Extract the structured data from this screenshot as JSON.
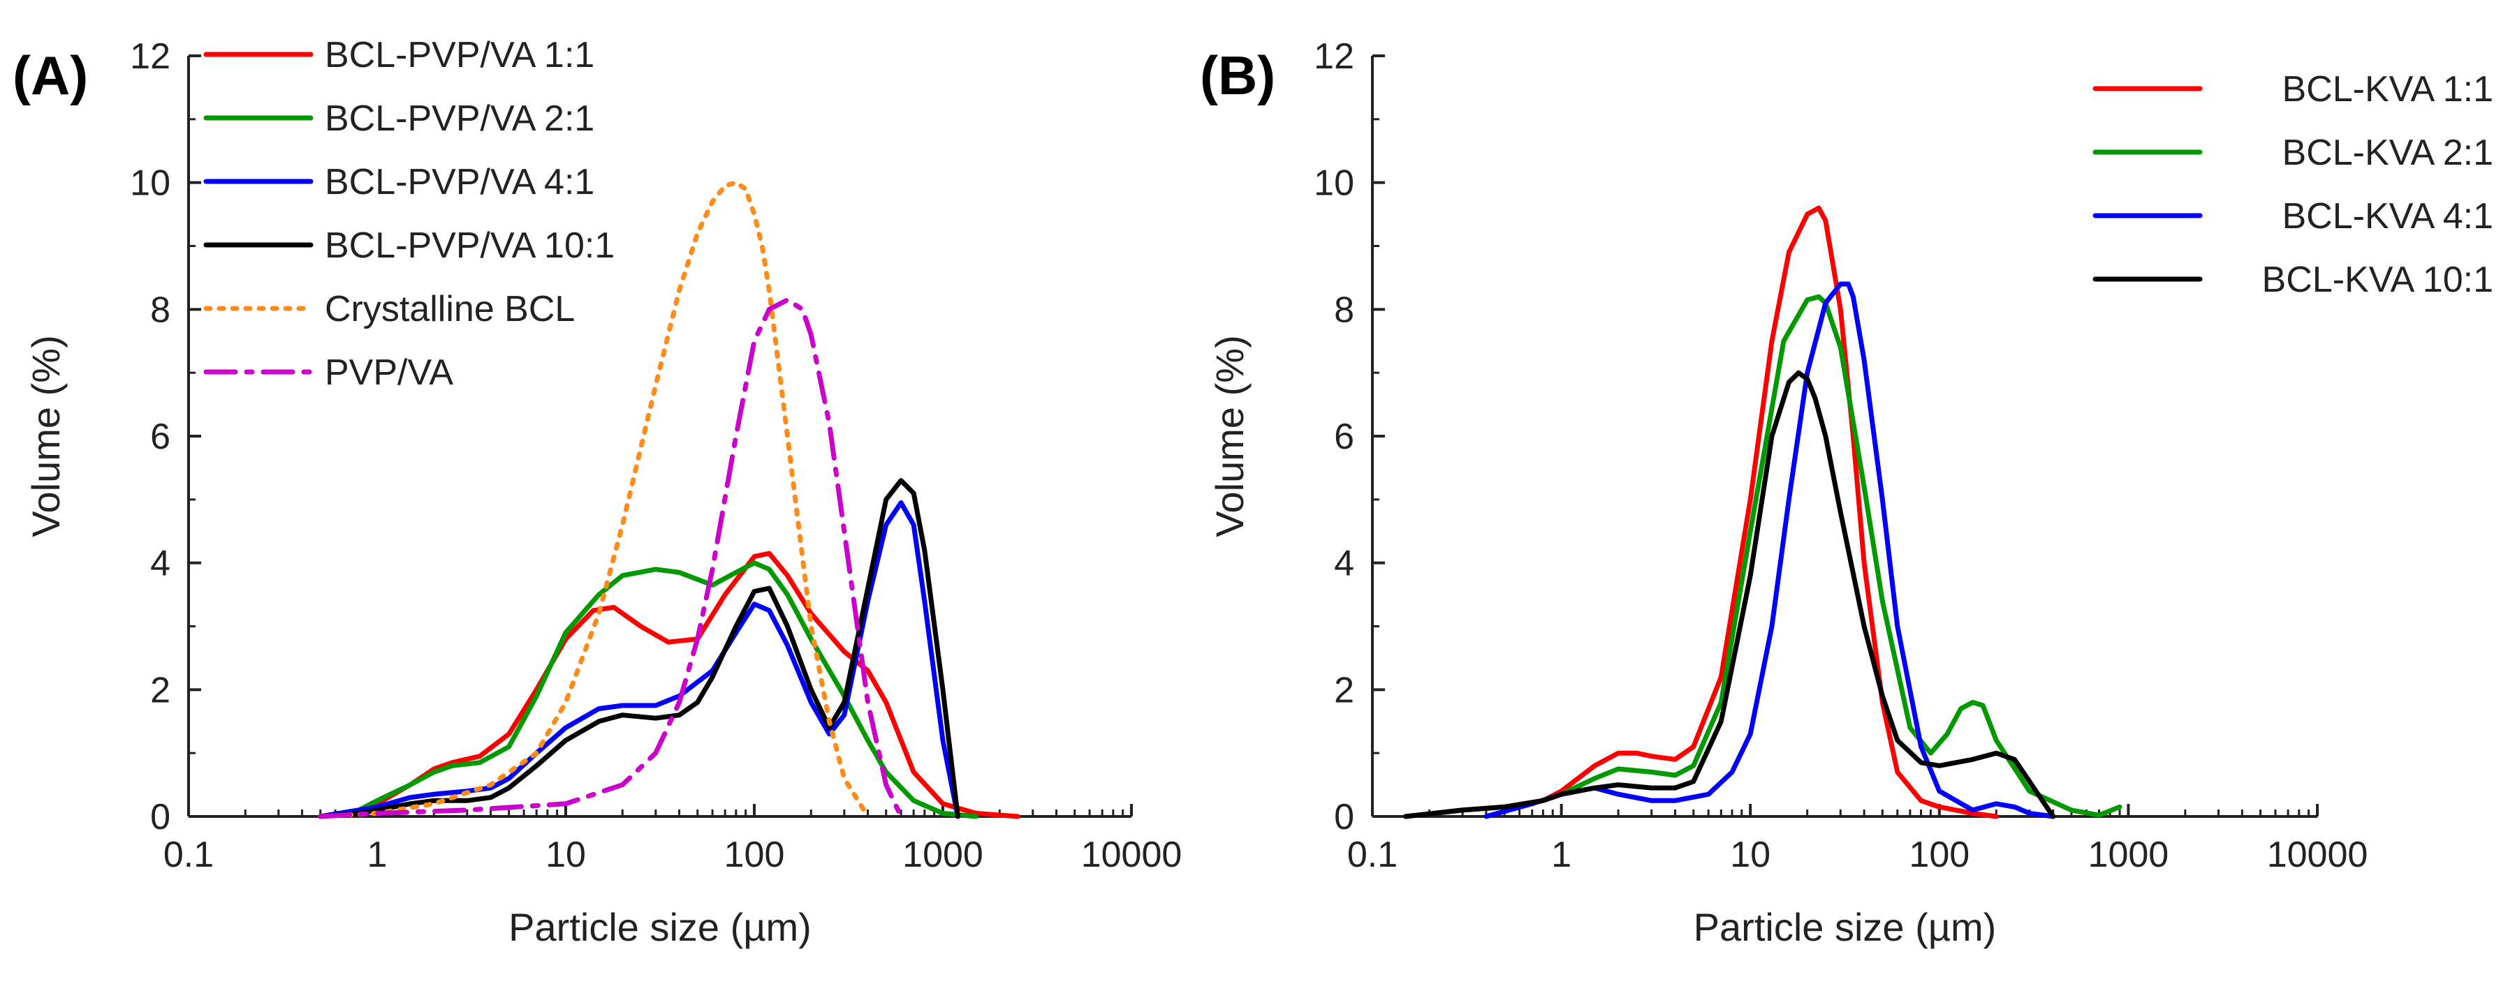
{
  "chart_data": [
    {
      "panel": "(A)",
      "type": "line",
      "xlabel": "Particle size (µm)",
      "ylabel": "Volume (%)",
      "xscale": "log",
      "xlim": [
        0.1,
        10000
      ],
      "ylim": [
        0,
        12
      ],
      "xticks": [
        0.1,
        1,
        10,
        100,
        1000,
        10000
      ],
      "xtick_labels": [
        "0.1",
        "1",
        "10",
        "100",
        "1000",
        "10000"
      ],
      "yticks": [
        0,
        2,
        4,
        6,
        8,
        10,
        12
      ],
      "ytick_labels": [
        "0",
        "2",
        "4",
        "6",
        "8",
        "10",
        "12"
      ],
      "grid": false,
      "legend_position": "top-left",
      "series": [
        {
          "name": "BCL-PVP/VA 1:1",
          "color": "#ff0000",
          "dash": "solid",
          "x": [
            0.5,
            0.8,
            1,
            1.5,
            2,
            2.5,
            3.5,
            5,
            7,
            10,
            14,
            18,
            25,
            35,
            50,
            70,
            100,
            120,
            150,
            200,
            300,
            400,
            500,
            700,
            1000,
            1500,
            2500
          ],
          "y": [
            0,
            0.05,
            0.2,
            0.5,
            0.75,
            0.85,
            0.95,
            1.3,
            2.0,
            2.8,
            3.25,
            3.3,
            3.0,
            2.75,
            2.8,
            3.5,
            4.1,
            4.15,
            3.8,
            3.2,
            2.6,
            2.3,
            1.8,
            0.7,
            0.2,
            0.05,
            0
          ]
        },
        {
          "name": "BCL-PVP/VA 2:1",
          "color": "#009900",
          "dash": "solid",
          "x": [
            0.5,
            0.8,
            1,
            1.5,
            2,
            2.5,
            3.5,
            5,
            7,
            10,
            15,
            20,
            30,
            40,
            60,
            80,
            100,
            120,
            150,
            200,
            300,
            400,
            500,
            700,
            1000,
            1500
          ],
          "y": [
            0,
            0.1,
            0.25,
            0.5,
            0.7,
            0.8,
            0.85,
            1.1,
            1.9,
            2.9,
            3.5,
            3.8,
            3.9,
            3.85,
            3.65,
            3.85,
            4.0,
            3.9,
            3.5,
            2.8,
            1.9,
            1.2,
            0.7,
            0.25,
            0.05,
            0
          ]
        },
        {
          "name": "BCL-PVP/VA 4:1",
          "color": "#0000ff",
          "dash": "solid",
          "x": [
            0.5,
            0.8,
            1,
            1.5,
            2,
            3,
            4,
            5,
            7,
            10,
            15,
            20,
            30,
            40,
            60,
            80,
            100,
            120,
            150,
            200,
            250,
            300,
            400,
            500,
            600,
            700,
            800,
            1000,
            1200
          ],
          "y": [
            0,
            0.1,
            0.15,
            0.3,
            0.35,
            0.4,
            0.45,
            0.6,
            1.0,
            1.4,
            1.7,
            1.75,
            1.75,
            1.9,
            2.3,
            2.9,
            3.35,
            3.25,
            2.7,
            1.8,
            1.3,
            1.6,
            3.4,
            4.6,
            4.95,
            4.6,
            3.4,
            1.2,
            0
          ]
        },
        {
          "name": "BCL-PVP/VA 10:1",
          "color": "#000000",
          "dash": "solid",
          "x": [
            0.5,
            0.8,
            1,
            1.5,
            2,
            3,
            4,
            5,
            7,
            10,
            15,
            20,
            30,
            40,
            50,
            60,
            80,
            100,
            120,
            150,
            200,
            250,
            300,
            400,
            500,
            600,
            700,
            800,
            1000,
            1200
          ],
          "y": [
            0,
            0.05,
            0.1,
            0.2,
            0.25,
            0.25,
            0.3,
            0.45,
            0.8,
            1.2,
            1.5,
            1.6,
            1.55,
            1.6,
            1.8,
            2.2,
            3.0,
            3.55,
            3.6,
            3.0,
            2.0,
            1.4,
            1.8,
            3.6,
            5.0,
            5.3,
            5.1,
            4.2,
            2.0,
            0
          ]
        },
        {
          "name": "Crystalline BCL",
          "color": "#ff8c1a",
          "dash": "dot",
          "x": [
            0.5,
            1,
            2,
            4,
            7,
            10,
            15,
            20,
            30,
            40,
            50,
            60,
            70,
            80,
            90,
            100,
            110,
            120,
            150,
            200,
            250,
            300,
            400
          ],
          "y": [
            0,
            0.05,
            0.2,
            0.5,
            1.0,
            1.8,
            3.2,
            4.6,
            6.8,
            8.3,
            9.2,
            9.7,
            9.95,
            10.0,
            9.9,
            9.5,
            9.0,
            8.3,
            6.0,
            3.0,
            1.5,
            0.6,
            0
          ]
        },
        {
          "name": "PVP/VA",
          "color": "#cc00cc",
          "dash": "dashdot",
          "x": [
            0.5,
            1,
            3,
            10,
            20,
            30,
            40,
            50,
            60,
            80,
            100,
            120,
            150,
            180,
            200,
            250,
            300,
            400,
            500,
            600
          ],
          "y": [
            0,
            0.05,
            0.1,
            0.2,
            0.5,
            1.0,
            1.8,
            2.8,
            3.9,
            6.0,
            7.5,
            8.0,
            8.15,
            8.0,
            7.6,
            6.2,
            4.5,
            1.8,
            0.5,
            0
          ]
        }
      ]
    },
    {
      "panel": "(B)",
      "type": "line",
      "xlabel": "Particle size (µm)",
      "ylabel": "Volume (%)",
      "xscale": "log",
      "xlim": [
        0.1,
        10000
      ],
      "ylim": [
        0,
        12
      ],
      "xticks": [
        0.1,
        1,
        10,
        100,
        1000,
        10000
      ],
      "xtick_labels": [
        "0.1",
        "1",
        "10",
        "100",
        "1000",
        "10000"
      ],
      "yticks": [
        0,
        2,
        4,
        6,
        8,
        10,
        12
      ],
      "ytick_labels": [
        "0",
        "2",
        "4",
        "6",
        "8",
        "10",
        "12"
      ],
      "grid": false,
      "legend_position": "top-right",
      "series": [
        {
          "name": "BCL-KVA 1:1",
          "color": "#ff0000",
          "dash": "solid",
          "x": [
            0.15,
            0.3,
            0.5,
            0.8,
            1,
            1.5,
            2,
            2.5,
            3,
            4,
            5,
            7,
            10,
            13,
            16,
            20,
            23,
            25,
            30,
            35,
            40,
            50,
            60,
            80,
            100,
            150,
            200
          ],
          "y": [
            0,
            0.1,
            0.15,
            0.25,
            0.4,
            0.8,
            1.0,
            1.0,
            0.95,
            0.9,
            1.1,
            2.2,
            5.0,
            7.5,
            8.9,
            9.5,
            9.6,
            9.4,
            8.0,
            6.0,
            4.0,
            1.8,
            0.7,
            0.25,
            0.15,
            0.05,
            0
          ]
        },
        {
          "name": "BCL-KVA 2:1",
          "color": "#009900",
          "dash": "solid",
          "x": [
            0.15,
            0.3,
            0.5,
            0.8,
            1,
            1.5,
            2,
            3,
            4,
            5,
            7,
            10,
            15,
            20,
            23,
            25,
            30,
            40,
            50,
            70,
            90,
            110,
            130,
            150,
            170,
            200,
            300,
            500,
            700,
            900
          ],
          "y": [
            0,
            0.1,
            0.15,
            0.25,
            0.35,
            0.6,
            0.75,
            0.7,
            0.65,
            0.8,
            1.8,
            4.5,
            7.5,
            8.15,
            8.2,
            8.1,
            7.4,
            5.2,
            3.4,
            1.4,
            1.0,
            1.3,
            1.7,
            1.8,
            1.75,
            1.2,
            0.4,
            0.1,
            0.02,
            0.15
          ]
        },
        {
          "name": "BCL-KVA 4:1",
          "color": "#0000ff",
          "dash": "solid",
          "x": [
            0.4,
            0.7,
            1,
            1.5,
            2,
            3,
            4,
            6,
            8,
            10,
            13,
            16,
            20,
            25,
            30,
            33,
            35,
            40,
            50,
            60,
            80,
            100,
            150,
            200,
            250,
            300,
            400
          ],
          "y": [
            0,
            0.2,
            0.35,
            0.45,
            0.35,
            0.25,
            0.25,
            0.35,
            0.7,
            1.3,
            3.0,
            5.0,
            7.0,
            8.1,
            8.4,
            8.4,
            8.2,
            7.2,
            5.0,
            3.0,
            1.1,
            0.4,
            0.1,
            0.2,
            0.15,
            0.05,
            0
          ]
        },
        {
          "name": "BCL-KVA 10:1",
          "color": "#000000",
          "dash": "solid",
          "x": [
            0.15,
            0.3,
            0.5,
            0.8,
            1,
            1.5,
            2,
            3,
            4,
            5,
            7,
            10,
            13,
            16,
            18,
            20,
            22,
            25,
            30,
            40,
            50,
            60,
            80,
            100,
            150,
            200,
            250,
            300,
            400
          ],
          "y": [
            0,
            0.1,
            0.15,
            0.25,
            0.35,
            0.45,
            0.5,
            0.45,
            0.45,
            0.55,
            1.5,
            3.8,
            6.0,
            6.85,
            7.0,
            6.9,
            6.6,
            6.0,
            4.8,
            3.0,
            1.9,
            1.2,
            0.85,
            0.8,
            0.9,
            1.0,
            0.9,
            0.55,
            0
          ]
        }
      ]
    }
  ]
}
